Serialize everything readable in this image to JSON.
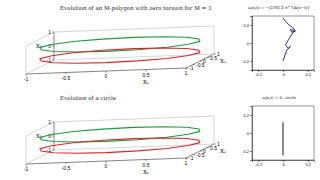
{
  "chart_data": [
    {
      "type": "line3d",
      "title": "Evolution of an M-polygon with zero torsion for M = 3",
      "xlabel": "X₁",
      "ylabel": "X₂",
      "zlabel": "X₃",
      "xlim": [
        -1,
        1
      ],
      "ylim": [
        -1,
        1
      ],
      "zlim": [
        -1,
        1
      ],
      "xticks": [
        -1,
        -0.5,
        0,
        0.5,
        1
      ],
      "yticks": [
        -1,
        -0.5,
        0,
        0.5,
        1
      ],
      "zticks": [
        -1,
        0,
        1
      ],
      "series": [
        {
          "color": "#1f9a3a",
          "x": [
            1,
            0.92,
            0.71,
            0.38,
            0,
            -0.38,
            -0.71,
            -0.92,
            -1,
            -0.92,
            -0.71,
            -0.38,
            0,
            0.38,
            0.71,
            0.92,
            1
          ],
          "y": [
            0,
            0.38,
            0.71,
            0.92,
            1,
            0.92,
            0.71,
            0.38,
            0,
            -0.38,
            -0.71,
            -0.92,
            -1,
            -0.92,
            -0.71,
            -0.38,
            0
          ],
          "z": [
            0.4,
            0.4,
            0.4,
            0.4,
            0.4,
            0.4,
            0.4,
            0.4,
            0.4,
            0.4,
            0.4,
            0.4,
            0.4,
            0.4,
            0.4,
            0.4,
            0.4
          ]
        },
        {
          "color": "#d62728",
          "x": [
            1,
            0.92,
            0.71,
            0.38,
            0,
            -0.38,
            -0.71,
            -0.92,
            -1,
            -0.92,
            -0.71,
            -0.38,
            0,
            0.38,
            0.71,
            0.92,
            1
          ],
          "y": [
            0,
            0.38,
            0.71,
            0.92,
            1,
            0.92,
            0.71,
            0.38,
            0,
            -0.38,
            -0.71,
            -0.92,
            -1,
            -0.92,
            -0.71,
            -0.38,
            0
          ],
          "z": [
            -0.4,
            -0.4,
            -0.4,
            -0.4,
            -0.4,
            -0.4,
            -0.4,
            -0.4,
            -0.4,
            -0.4,
            -0.4,
            -0.4,
            -0.4,
            -0.4,
            -0.4,
            -0.4,
            -0.4
          ]
        }
      ]
    },
    {
      "type": "line3d",
      "title": "Evolution of a circle",
      "xlabel": "X₁",
      "ylabel": "X₂",
      "zlabel": "X₃",
      "xlim": [
        -1,
        1
      ],
      "ylim": [
        -1,
        1
      ],
      "zlim": [
        -1,
        1
      ],
      "xticks": [
        -1,
        -0.5,
        0,
        0.5,
        1
      ],
      "yticks": [
        -1,
        -0.5,
        0,
        0.5,
        1
      ],
      "zticks": [
        -1,
        0,
        1
      ],
      "series": [
        {
          "color": "#1f9a3a",
          "x": [
            1,
            0.92,
            0.71,
            0.38,
            0,
            -0.38,
            -0.71,
            -0.92,
            -1,
            -0.92,
            -0.71,
            -0.38,
            0,
            0.38,
            0.71,
            0.92,
            1
          ],
          "y": [
            0,
            0.38,
            0.71,
            0.92,
            1,
            0.92,
            0.71,
            0.38,
            0,
            -0.38,
            -0.71,
            -0.92,
            -1,
            -0.92,
            -0.71,
            -0.38,
            0
          ],
          "z": [
            0.4,
            0.4,
            0.4,
            0.4,
            0.4,
            0.4,
            0.4,
            0.4,
            0.4,
            0.4,
            0.4,
            0.4,
            0.4,
            0.4,
            0.4,
            0.4,
            0.4
          ]
        },
        {
          "color": "#d62728",
          "x": [
            1,
            0.92,
            0.71,
            0.38,
            0,
            -0.38,
            -0.71,
            -0.92,
            -1,
            -0.92,
            -0.71,
            -0.38,
            0,
            0.38,
            0.71,
            0.92,
            1
          ],
          "y": [
            0,
            0.38,
            0.71,
            0.92,
            1,
            0.92,
            0.71,
            0.38,
            0,
            -0.38,
            -0.71,
            -0.92,
            -1,
            -0.92,
            -0.71,
            -0.38,
            0
          ],
          "z": [
            -0.4,
            -0.4,
            -0.4,
            -0.4,
            -0.4,
            -0.4,
            -0.4,
            -0.4,
            -0.4,
            -0.4,
            -0.4,
            -0.4,
            -0.4,
            -0.4,
            -0.4,
            -0.4,
            -0.4
          ]
        }
      ]
    },
    {
      "type": "line",
      "title": "ω(s,t) = −(2/M) Σ e^{ik(s−t)}",
      "xlim": [
        -0.25,
        0.25
      ],
      "ylim": [
        -0.3,
        0.3
      ],
      "xticks": [
        -0.2,
        0,
        0.2
      ],
      "yticks": [
        -0.2,
        0,
        0.2
      ],
      "series": [
        {
          "color": "#1a1a80",
          "x": [
            0,
            0.02,
            0.05,
            0.08,
            0.1,
            0.07,
            0.06,
            0.09,
            0.05,
            0.02,
            0.04,
            0.06,
            0.03,
            0
          ],
          "values": [
            0.28,
            0.24,
            0.2,
            0.17,
            0.13,
            0.12,
            0.15,
            0.14,
            0.05,
            -0.02,
            -0.06,
            -0.04,
            -0.08,
            -0.2
          ]
        }
      ]
    },
    {
      "type": "line",
      "title": "ω(s,t) = 0, circle",
      "xlim": [
        -0.25,
        0.25
      ],
      "ylim": [
        -0.3,
        0.3
      ],
      "xticks": [
        -0.2,
        0,
        0.2
      ],
      "yticks": [
        -0.2,
        0,
        0.2
      ],
      "series": [
        {
          "color": "#000000",
          "x": [
            0,
            0
          ],
          "values": [
            -0.25,
            0.12
          ]
        }
      ]
    }
  ]
}
